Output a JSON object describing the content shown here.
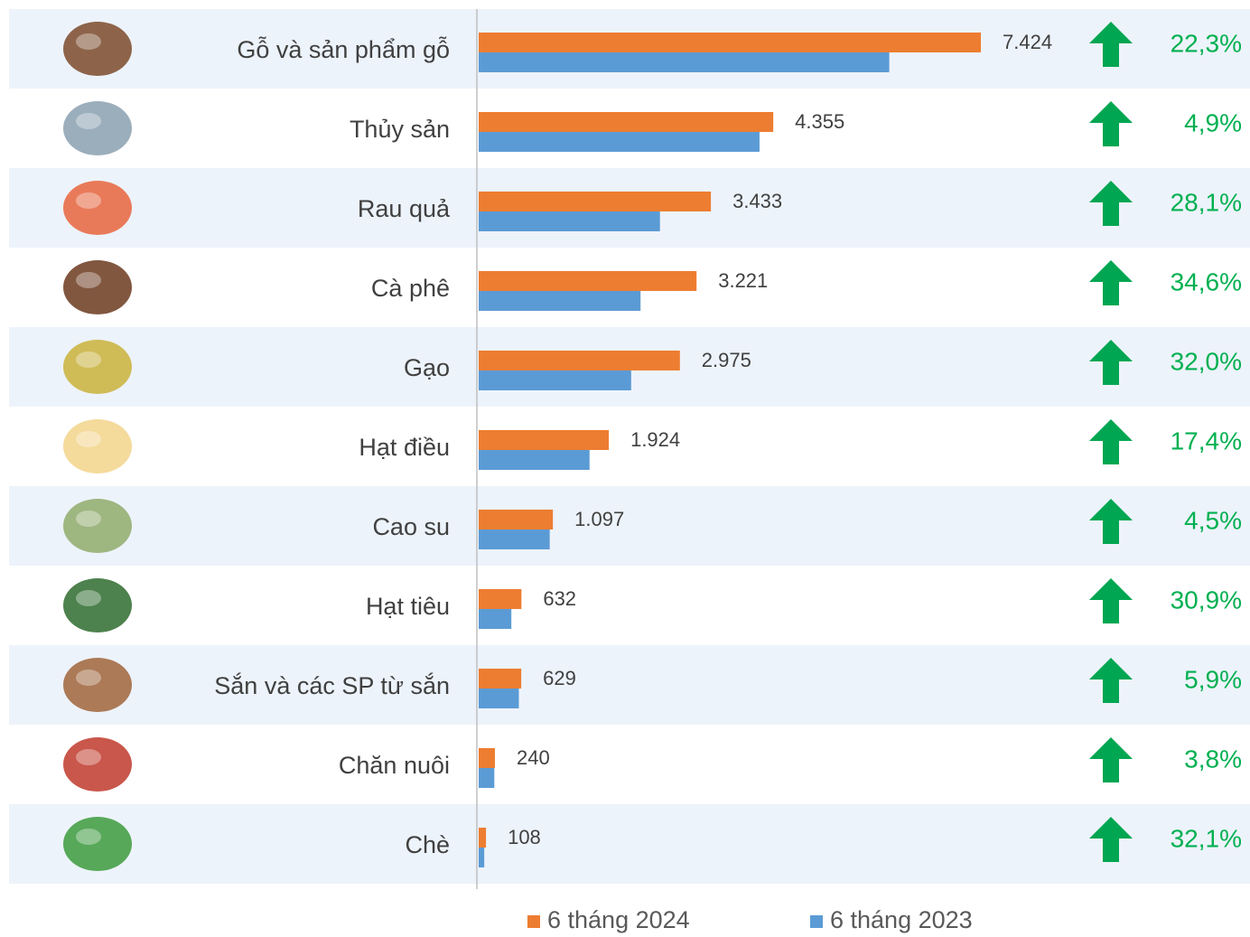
{
  "chart_data": {
    "type": "bar",
    "orientation": "horizontal",
    "categories": [
      "Gỗ và sản phẩm gỗ",
      "Thủy sản",
      "Rau quả",
      "Cà phê",
      "Gạo",
      "Hạt điều",
      "Cao su",
      "Hạt tiêu",
      "Sắn và các SP từ sắn",
      "Chăn nuôi",
      "Chè"
    ],
    "series": [
      {
        "name": "6 tháng 2024",
        "color": "#ed7d31",
        "values": [
          7424,
          4355,
          3433,
          3221,
          2975,
          1924,
          1097,
          632,
          629,
          240,
          108
        ],
        "value_labels": [
          "7.424",
          "4.355",
          "3.433",
          "3.221",
          "2.975",
          "1.924",
          "1.097",
          "632",
          "629",
          "240",
          "108"
        ]
      },
      {
        "name": "6 tháng 2023",
        "color": "#5b9bd5",
        "values": [
          6070,
          4152,
          2680,
          2393,
          2254,
          1639,
          1050,
          483,
          594,
          231,
          82
        ]
      }
    ],
    "change_labels": [
      "22,3%",
      "4,9%",
      "28,1%",
      "34,6%",
      "32,0%",
      "17,4%",
      "4,5%",
      "30,9%",
      "5,9%",
      "3,8%",
      "32,1%"
    ],
    "change_color": "#00b050",
    "legend": "bottom"
  }
}
